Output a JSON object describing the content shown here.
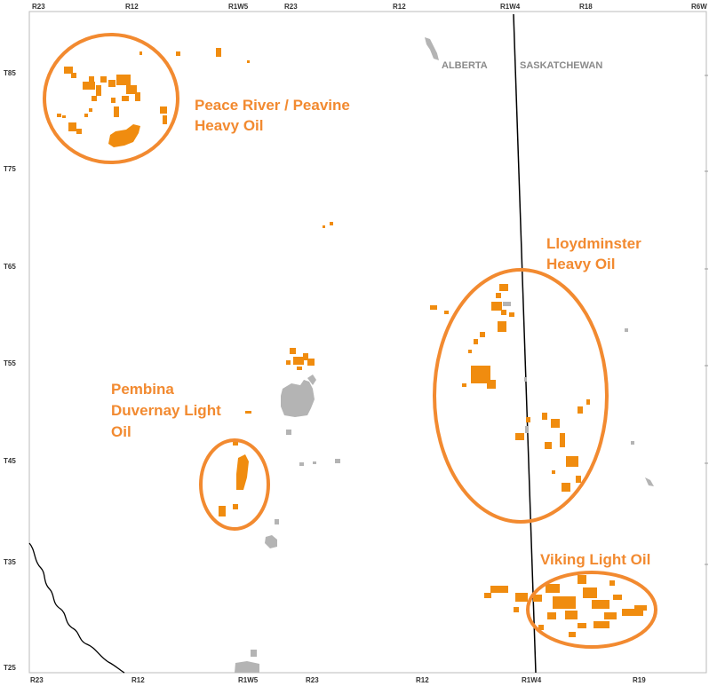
{
  "top_labels": [
    "R23",
    "R12",
    "R1W5",
    "R23",
    "R12",
    "R1W4",
    "R18",
    "R6W"
  ],
  "bottom_labels": [
    "R23",
    "R12",
    "R1W5",
    "R23",
    "R12",
    "R1W4",
    "R19"
  ],
  "left_labels": [
    "T85",
    "T75",
    "T65",
    "T55",
    "T45",
    "T35",
    "T25"
  ],
  "provinces": {
    "west": "ALBERTA",
    "east": "SASKATCHEWAN"
  },
  "regions": {
    "peace_river": {
      "line1": "Peace River / Peavine",
      "line2": "Heavy Oil"
    },
    "lloydminster": {
      "line1": "Lloydminster",
      "line2": "Heavy Oil"
    },
    "pembina": {
      "line1": "Pembina",
      "line2": "Duvernay Light",
      "line3": "Oil"
    },
    "viking": {
      "line1": "Viking Light Oil"
    }
  },
  "colors": {
    "highlight": "#f28a30",
    "play_fill": "#f08c0f",
    "urban_fill": "#b4b4b4",
    "border_line": "#000000",
    "frame": "#bbbbbb"
  }
}
